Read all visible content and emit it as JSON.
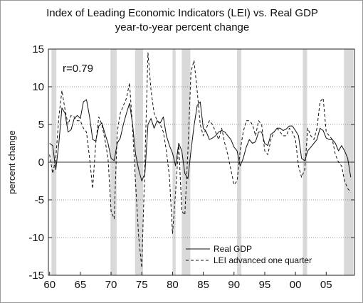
{
  "chart_data": {
    "type": "line",
    "title": "Index of Leading Economic Indicators (LEI) vs. Real GDP",
    "subtitle": "year-to-year percent change",
    "ylabel": "percent change",
    "xlabel": "",
    "annotation": "r=0.79",
    "ylim": [
      -15,
      15
    ],
    "xlim": [
      1959.8,
      2009.6
    ],
    "yticks": [
      15,
      10,
      5,
      0,
      -5,
      -10,
      -15
    ],
    "ytick_labels": [
      "15",
      "10",
      "5",
      "0",
      "-5",
      "-10",
      "-15"
    ],
    "xticks": [
      1960,
      1965,
      1970,
      1975,
      1980,
      1985,
      1990,
      1995,
      2000,
      2005
    ],
    "xtick_labels": [
      "60",
      "65",
      "70",
      "75",
      "80",
      "85",
      "90",
      "95",
      "00",
      "05"
    ],
    "grid": "horizontal dotted",
    "legend_position": "bottom-right",
    "recessions": [
      [
        1960.3,
        1961.1
      ],
      [
        1969.9,
        1970.9
      ],
      [
        1973.9,
        1975.2
      ],
      [
        1980.0,
        1980.5
      ],
      [
        1981.5,
        1982.9
      ],
      [
        1990.5,
        1991.2
      ],
      [
        2001.2,
        2001.9
      ],
      [
        2007.9,
        2009.4
      ]
    ],
    "series": [
      {
        "name": "Real GDP",
        "style": "solid",
        "x": [
          1960.0,
          1960.5,
          1961.0,
          1961.5,
          1962.0,
          1962.5,
          1963.0,
          1963.5,
          1964.0,
          1964.5,
          1965.0,
          1965.5,
          1966.0,
          1966.5,
          1967.0,
          1967.5,
          1968.0,
          1968.5,
          1969.0,
          1969.5,
          1970.0,
          1970.5,
          1971.0,
          1971.5,
          1972.0,
          1972.5,
          1973.0,
          1973.5,
          1974.0,
          1974.5,
          1975.0,
          1975.5,
          1976.0,
          1976.5,
          1977.0,
          1977.5,
          1978.0,
          1978.5,
          1979.0,
          1979.5,
          1980.0,
          1980.5,
          1981.0,
          1981.5,
          1982.0,
          1982.5,
          1983.0,
          1983.5,
          1984.0,
          1984.5,
          1985.0,
          1985.5,
          1986.0,
          1986.5,
          1987.0,
          1987.5,
          1988.0,
          1988.5,
          1989.0,
          1989.5,
          1990.0,
          1990.5,
          1991.0,
          1991.5,
          1992.0,
          1992.5,
          1993.0,
          1993.5,
          1994.0,
          1994.5,
          1995.0,
          1995.5,
          1996.0,
          1996.5,
          1997.0,
          1997.5,
          1998.0,
          1998.5,
          1999.0,
          1999.5,
          2000.0,
          2000.5,
          2001.0,
          2001.5,
          2002.0,
          2002.5,
          2003.0,
          2003.5,
          2004.0,
          2004.5,
          2005.0,
          2005.5,
          2006.0,
          2006.5,
          2007.0,
          2007.5,
          2008.0,
          2008.5,
          2009.0
        ],
        "values": [
          2.5,
          2.2,
          -1.0,
          2.5,
          7.2,
          6.5,
          4.0,
          4.3,
          5.8,
          6.2,
          5.8,
          8.0,
          8.3,
          6.0,
          3.0,
          2.8,
          4.8,
          5.2,
          3.8,
          2.5,
          0.5,
          0.2,
          2.5,
          3.2,
          5.0,
          6.5,
          7.8,
          5.0,
          1.0,
          -1.0,
          -2.5,
          -1.5,
          5.0,
          5.8,
          4.5,
          5.5,
          5.2,
          6.0,
          3.5,
          2.2,
          1.2,
          -0.5,
          2.5,
          1.5,
          -1.5,
          -2.2,
          1.5,
          4.8,
          7.5,
          8.0,
          4.5,
          4.0,
          3.0,
          3.2,
          3.5,
          4.0,
          4.2,
          4.0,
          3.5,
          3.0,
          2.0,
          1.5,
          -0.5,
          0.5,
          2.0,
          3.0,
          2.5,
          2.7,
          4.0,
          4.0,
          2.5,
          2.2,
          3.7,
          4.0,
          4.5,
          4.5,
          4.2,
          4.4,
          4.8,
          4.8,
          4.2,
          3.5,
          0.5,
          0.2,
          1.5,
          2.0,
          2.5,
          3.0,
          4.5,
          4.2,
          3.2,
          3.0,
          3.0,
          2.5,
          1.5,
          2.2,
          1.5,
          0.5,
          -2.0
        ]
      },
      {
        "name": "LEI advanced one quarter",
        "style": "dashed",
        "x": [
          1960.0,
          1960.5,
          1961.0,
          1961.5,
          1962.0,
          1962.5,
          1963.0,
          1963.5,
          1964.0,
          1964.5,
          1965.0,
          1965.5,
          1966.0,
          1966.5,
          1967.0,
          1967.5,
          1968.0,
          1968.5,
          1969.0,
          1969.5,
          1970.0,
          1970.5,
          1971.0,
          1971.5,
          1972.0,
          1972.5,
          1973.0,
          1973.5,
          1974.0,
          1974.5,
          1975.0,
          1975.5,
          1976.0,
          1976.5,
          1977.0,
          1977.5,
          1978.0,
          1978.5,
          1979.0,
          1979.5,
          1980.0,
          1980.5,
          1981.0,
          1981.5,
          1982.0,
          1982.5,
          1983.0,
          1983.5,
          1984.0,
          1984.5,
          1985.0,
          1985.5,
          1986.0,
          1986.5,
          1987.0,
          1987.5,
          1988.0,
          1988.5,
          1989.0,
          1989.5,
          1990.0,
          1990.5,
          1991.0,
          1991.5,
          1992.0,
          1992.5,
          1993.0,
          1993.5,
          1994.0,
          1994.5,
          1995.0,
          1995.5,
          1996.0,
          1996.5,
          1997.0,
          1997.5,
          1998.0,
          1998.5,
          1999.0,
          1999.5,
          2000.0,
          2000.5,
          2001.0,
          2001.5,
          2002.0,
          2002.5,
          2003.0,
          2003.5,
          2004.0,
          2004.5,
          2005.0,
          2005.5,
          2006.0,
          2006.5,
          2007.0,
          2007.5,
          2008.0,
          2008.5,
          2009.0
        ],
        "values": [
          1.0,
          -1.5,
          0.5,
          6.0,
          9.5,
          7.0,
          5.0,
          6.2,
          6.0,
          5.5,
          5.5,
          4.5,
          4.0,
          0.5,
          -3.5,
          2.5,
          6.0,
          5.0,
          3.0,
          0.5,
          -6.5,
          -7.5,
          4.0,
          6.5,
          7.5,
          8.5,
          10.5,
          4.5,
          -3.0,
          -10.0,
          -14.0,
          0.0,
          14.5,
          9.5,
          6.5,
          5.5,
          5.0,
          4.0,
          1.5,
          -2.0,
          -9.5,
          -4.0,
          2.5,
          -6.5,
          -7.0,
          1.5,
          12.0,
          13.5,
          9.5,
          5.0,
          3.5,
          4.5,
          5.5,
          5.0,
          4.0,
          3.0,
          4.5,
          2.5,
          1.0,
          -1.0,
          -3.0,
          -2.5,
          1.5,
          4.0,
          5.5,
          5.5,
          5.0,
          3.5,
          5.5,
          5.0,
          1.5,
          1.0,
          3.0,
          4.0,
          4.5,
          4.0,
          3.5,
          3.5,
          4.5,
          4.0,
          3.0,
          -0.5,
          -2.0,
          -1.0,
          4.5,
          3.5,
          3.0,
          4.5,
          8.0,
          8.5,
          4.0,
          3.5,
          3.0,
          1.0,
          0.0,
          -0.5,
          -2.5,
          -3.5,
          -4.0
        ]
      }
    ]
  }
}
